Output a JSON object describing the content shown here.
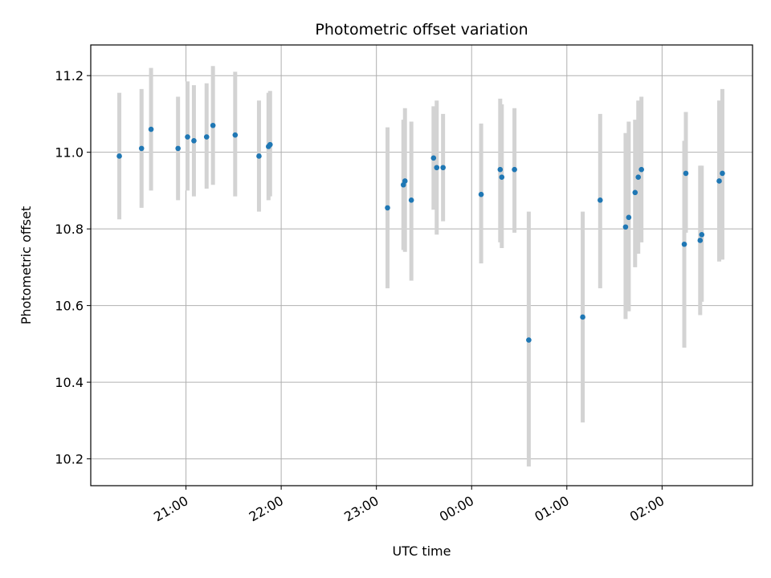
{
  "chart_data": {
    "type": "scatter",
    "title": "Photometric offset variation",
    "xlabel": "UTC time",
    "ylabel": "Photometric offset",
    "x_ticks": [
      "21:00",
      "22:00",
      "23:00",
      "00:00",
      "01:00",
      "02:00"
    ],
    "x_tick_hours": [
      21,
      22,
      23,
      24,
      25,
      26
    ],
    "xlim_hours": [
      20.0,
      26.95
    ],
    "ylim": [
      10.13,
      11.28
    ],
    "y_ticks": [
      10.2,
      10.4,
      10.6,
      10.8,
      11.0,
      11.2
    ],
    "grid": true,
    "colors": {
      "point": "#1f77b4",
      "errorbar": "#d3d3d3",
      "grid": "#b0b0b0"
    },
    "series": [
      {
        "points": [
          {
            "x": "20:18",
            "y": 10.99,
            "err_low": 10.825,
            "err_high": 11.155
          },
          {
            "x": "20:32",
            "y": 11.01,
            "err_low": 10.855,
            "err_high": 11.165
          },
          {
            "x": "20:38",
            "y": 11.06,
            "err_low": 10.9,
            "err_high": 11.22
          },
          {
            "x": "20:55",
            "y": 11.01,
            "err_low": 10.875,
            "err_high": 11.145
          },
          {
            "x": "21:01",
            "y": 11.04,
            "err_low": 10.9,
            "err_high": 11.185
          },
          {
            "x": "21:05",
            "y": 11.03,
            "err_low": 10.885,
            "err_high": 11.175
          },
          {
            "x": "21:13",
            "y": 11.04,
            "err_low": 10.905,
            "err_high": 11.18
          },
          {
            "x": "21:17",
            "y": 11.07,
            "err_low": 10.915,
            "err_high": 11.225
          },
          {
            "x": "21:31",
            "y": 11.045,
            "err_low": 10.885,
            "err_high": 11.21
          },
          {
            "x": "21:46",
            "y": 10.99,
            "err_low": 10.845,
            "err_high": 11.135
          },
          {
            "x": "21:52",
            "y": 11.015,
            "err_low": 10.875,
            "err_high": 11.155
          },
          {
            "x": "21:53",
            "y": 11.02,
            "err_low": 10.885,
            "err_high": 11.16
          },
          {
            "x": "23:07",
            "y": 10.855,
            "err_low": 10.645,
            "err_high": 11.065
          },
          {
            "x": "23:17",
            "y": 10.915,
            "err_low": 10.745,
            "err_high": 11.085
          },
          {
            "x": "23:18",
            "y": 10.925,
            "err_low": 10.74,
            "err_high": 11.115
          },
          {
            "x": "23:22",
            "y": 10.875,
            "err_low": 10.665,
            "err_high": 11.08
          },
          {
            "x": "23:36",
            "y": 10.985,
            "err_low": 10.85,
            "err_high": 11.12
          },
          {
            "x": "23:38",
            "y": 10.96,
            "err_low": 10.785,
            "err_high": 11.135
          },
          {
            "x": "23:42",
            "y": 10.96,
            "err_low": 10.82,
            "err_high": 11.1
          },
          {
            "x": "00:06",
            "y": 10.89,
            "err_low": 10.71,
            "err_high": 11.075
          },
          {
            "x": "00:18",
            "y": 10.955,
            "err_low": 10.765,
            "err_high": 11.14
          },
          {
            "x": "00:19",
            "y": 10.935,
            "err_low": 10.75,
            "err_high": 11.125
          },
          {
            "x": "00:27",
            "y": 10.955,
            "err_low": 10.79,
            "err_high": 11.115
          },
          {
            "x": "00:36",
            "y": 10.51,
            "err_low": 10.18,
            "err_high": 10.845
          },
          {
            "x": "01:10",
            "y": 10.57,
            "err_low": 10.295,
            "err_high": 10.845
          },
          {
            "x": "01:21",
            "y": 10.875,
            "err_low": 10.645,
            "err_high": 11.1
          },
          {
            "x": "01:37",
            "y": 10.805,
            "err_low": 10.565,
            "err_high": 11.05
          },
          {
            "x": "01:39",
            "y": 10.83,
            "err_low": 10.585,
            "err_high": 11.08
          },
          {
            "x": "01:43",
            "y": 10.895,
            "err_low": 10.7,
            "err_high": 11.085
          },
          {
            "x": "01:45",
            "y": 10.935,
            "err_low": 10.735,
            "err_high": 11.135
          },
          {
            "x": "01:47",
            "y": 10.955,
            "err_low": 10.765,
            "err_high": 11.145
          },
          {
            "x": "02:14",
            "y": 10.76,
            "err_low": 10.49,
            "err_high": 11.03
          },
          {
            "x": "02:15",
            "y": 10.945,
            "err_low": 10.79,
            "err_high": 11.105
          },
          {
            "x": "02:24",
            "y": 10.77,
            "err_low": 10.575,
            "err_high": 10.965
          },
          {
            "x": "02:25",
            "y": 10.785,
            "err_low": 10.61,
            "err_high": 10.965
          },
          {
            "x": "02:36",
            "y": 10.925,
            "err_low": 10.715,
            "err_high": 11.135
          },
          {
            "x": "02:38",
            "y": 10.945,
            "err_low": 10.72,
            "err_high": 11.165
          }
        ]
      }
    ]
  }
}
